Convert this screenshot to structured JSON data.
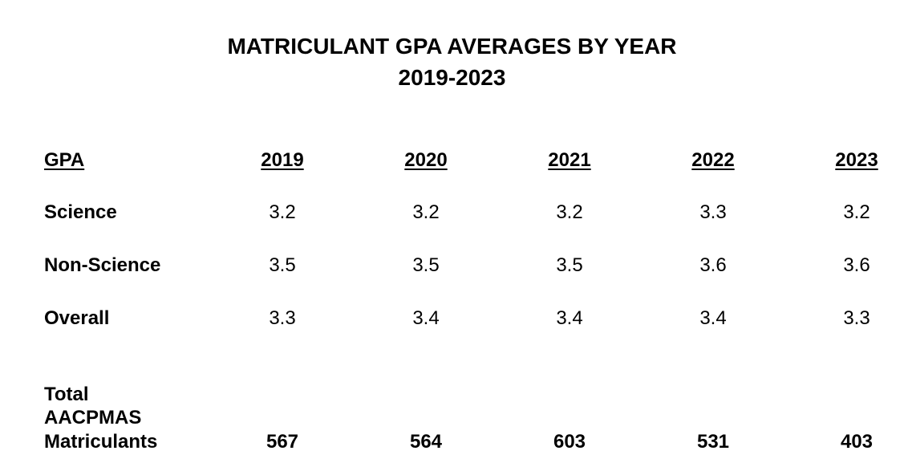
{
  "title": "MATRICULANT GPA AVERAGES BY YEAR",
  "subtitle": "2019-2023",
  "header": {
    "label": "GPA",
    "years": [
      "2019",
      "2020",
      "2021",
      "2022",
      "2023"
    ]
  },
  "rows": [
    {
      "label": "Science",
      "values": [
        "3.2",
        "3.2",
        "3.2",
        "3.3",
        "3.2"
      ]
    },
    {
      "label": "Non-Science",
      "values": [
        "3.5",
        "3.5",
        "3.5",
        "3.6",
        "3.6"
      ]
    },
    {
      "label": "Overall",
      "values": [
        "3.3",
        "3.4",
        "3.4",
        "3.4",
        "3.3"
      ]
    }
  ],
  "total": {
    "label_lines": [
      "Total",
      "AACPMAS",
      "Matriculants"
    ],
    "values": [
      "567",
      "564",
      "603",
      "531",
      "403"
    ]
  }
}
